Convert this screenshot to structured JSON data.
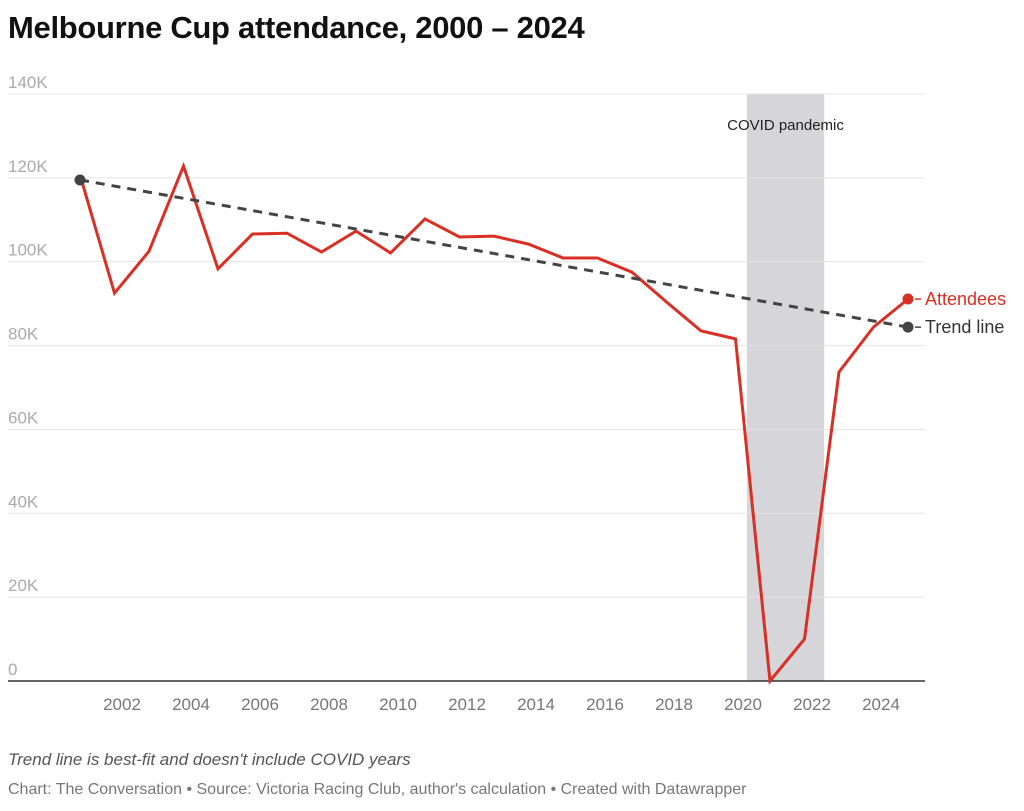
{
  "title": "Melbourne Cup attendance, 2000 – 2024",
  "note": "Trend line is best-fit and doesn't include COVID years",
  "source": "Chart: The Conversation • Source: Victoria Racing Club, author's calculation • Created with Datawrapper",
  "chart_data": {
    "type": "line",
    "title": "Melbourne Cup attendance, 2000 – 2024",
    "x": [
      2000,
      2001,
      2002,
      2003,
      2004,
      2005,
      2006,
      2007,
      2008,
      2009,
      2010,
      2011,
      2012,
      2013,
      2014,
      2015,
      2016,
      2017,
      2018,
      2019,
      2020,
      2021,
      2022,
      2023,
      2024
    ],
    "series": [
      {
        "name": "Attendees",
        "color": "#d93025",
        "values": [
          120.7,
          92.5,
          102.5,
          122.8,
          98.3,
          106.6,
          106.8,
          102.3,
          107.3,
          102.1,
          110.2,
          105.9,
          106.1,
          104.2,
          100.9,
          100.9,
          97.5,
          90.4,
          83.5,
          81.6,
          0,
          10.0,
          73.7,
          84.4,
          91.1
        ]
      },
      {
        "name": "Trend line",
        "color": "#444444",
        "style": "dashed",
        "x": [
          2000,
          2024
        ],
        "values": [
          119.5,
          84.4
        ]
      }
    ],
    "y_unit": "thousands",
    "ylim": [
      0,
      140
    ],
    "yticks": [
      0,
      20,
      40,
      60,
      80,
      100,
      120,
      140
    ],
    "ytick_labels": [
      "0",
      "20K",
      "40K",
      "60K",
      "80K",
      "100K",
      "120K",
      "140K"
    ],
    "xticks": [
      2002,
      2004,
      2006,
      2008,
      2010,
      2012,
      2014,
      2016,
      2018,
      2020,
      2022,
      2024
    ],
    "xtick_labels": [
      "2002",
      "2004",
      "2006",
      "2008",
      "2010",
      "2012",
      "2014",
      "2016",
      "2018",
      "2020",
      "2022",
      "2024"
    ],
    "grid": true,
    "legend": "direct labels at line ends (right)",
    "annotations": [
      {
        "label": "COVID pandemic",
        "x_range": [
          2019.33,
          2021.57
        ],
        "color": "#d5d5da"
      }
    ]
  }
}
